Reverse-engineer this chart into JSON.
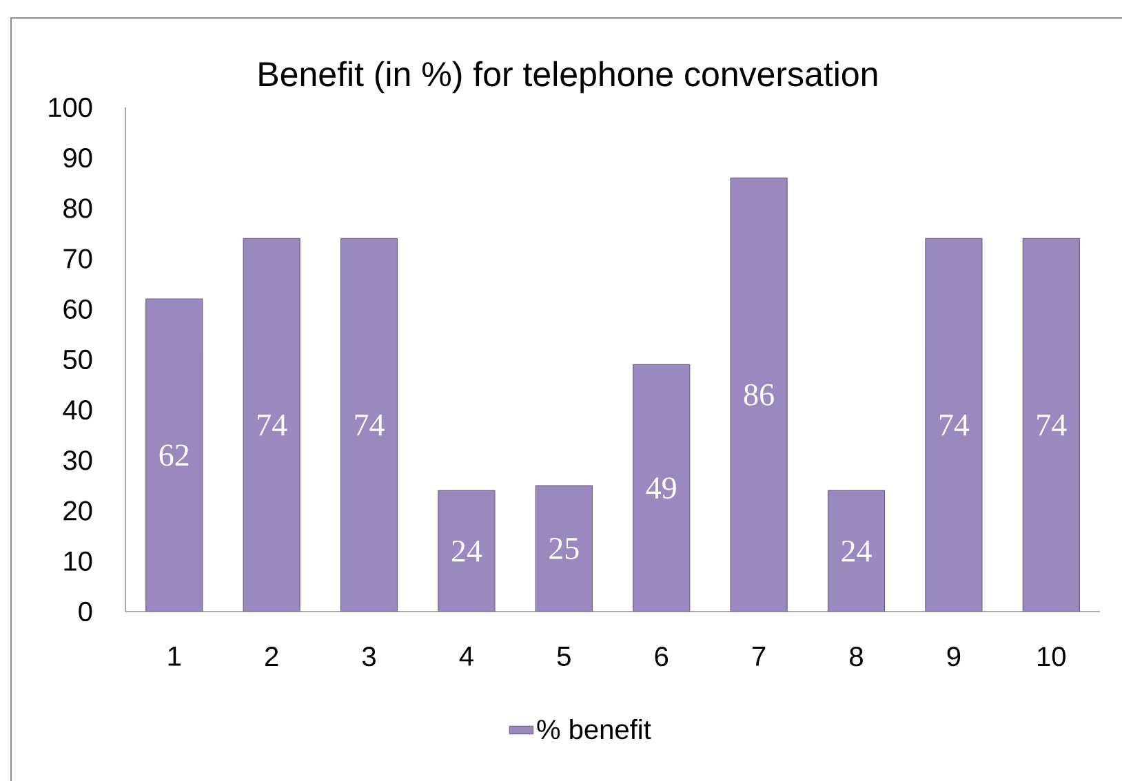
{
  "chart_data": {
    "type": "bar",
    "title": "Benefit (in %) for telephone conversation",
    "categories": [
      "1",
      "2",
      "3",
      "4",
      "5",
      "6",
      "7",
      "8",
      "9",
      "10"
    ],
    "series": [
      {
        "name": "% benefit",
        "color": "#9b88bf",
        "values": [
          62,
          74,
          74,
          24,
          25,
          49,
          86,
          24,
          74,
          74
        ]
      }
    ],
    "ylim": [
      0,
      100
    ],
    "yticks": [
      0,
      10,
      20,
      30,
      40,
      50,
      60,
      70,
      80,
      90,
      100
    ],
    "data_labels": true,
    "legend": "bottom"
  }
}
